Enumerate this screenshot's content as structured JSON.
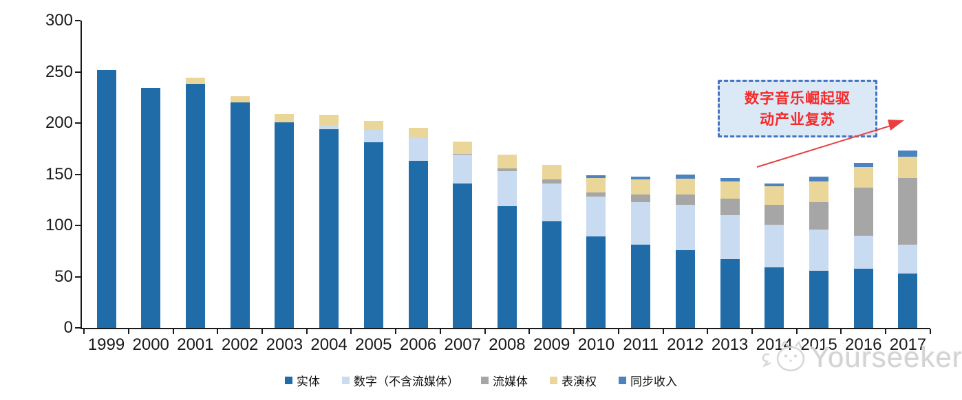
{
  "chart_data": {
    "type": "bar",
    "subtype": "stacked",
    "title": "",
    "xlabel": "",
    "ylabel": "",
    "ylim": [
      0,
      300
    ],
    "yticks": [
      0,
      50,
      100,
      150,
      200,
      250,
      300
    ],
    "grid": false,
    "legend_position": "bottom",
    "categories": [
      "1999",
      "2000",
      "2001",
      "2002",
      "2003",
      "2004",
      "2005",
      "2006",
      "2007",
      "2008",
      "2009",
      "2010",
      "2011",
      "2012",
      "2013",
      "2014",
      "2015",
      "2016",
      "2017"
    ],
    "series": [
      {
        "name": "实体",
        "color": "#1F6CA9",
        "values": [
          252,
          234,
          238,
          220,
          201,
          194,
          181,
          163,
          141,
          119,
          104,
          89,
          81,
          76,
          67,
          59,
          56,
          58,
          53
        ]
      },
      {
        "name": "数字（不含流媒体）",
        "color": "#C8DBF0",
        "values": [
          0,
          0,
          0,
          0,
          0,
          4,
          12,
          22,
          28,
          34,
          37,
          39,
          42,
          44,
          43,
          42,
          40,
          32,
          28
        ]
      },
      {
        "name": "流媒体",
        "color": "#A6A6A6",
        "values": [
          0,
          0,
          0,
          0,
          0,
          0,
          0,
          0,
          1,
          3,
          4,
          4,
          7,
          10,
          16,
          19,
          27,
          47,
          65
        ]
      },
      {
        "name": "表演权",
        "color": "#EBD69A",
        "values": [
          0,
          0,
          6,
          6,
          8,
          10,
          9,
          10,
          12,
          13,
          14,
          14,
          15,
          16,
          17,
          18,
          20,
          20,
          21
        ]
      },
      {
        "name": "同步收入",
        "color": "#4C83BE",
        "values": [
          0,
          0,
          0,
          0,
          0,
          0,
          0,
          0,
          0,
          0,
          0,
          3,
          3,
          4,
          3,
          3,
          5,
          4,
          6
        ]
      }
    ],
    "totals": [
      252,
      234,
      244,
      226,
      209,
      208,
      202,
      195,
      182,
      169,
      159,
      149,
      148,
      150,
      146,
      141,
      148,
      161,
      173
    ]
  },
  "annotation": {
    "line1": "数字音乐崛起驱",
    "line2": "动产业复苏",
    "text_color": "#F52B2B",
    "border_color": "#4472C4",
    "fill_color": "#DBE8F6",
    "arrow_color": "#E64040"
  },
  "watermark": {
    "text": "Yourseeker",
    "icon": "cat-logo-icon",
    "color": "#d3d3d3"
  }
}
